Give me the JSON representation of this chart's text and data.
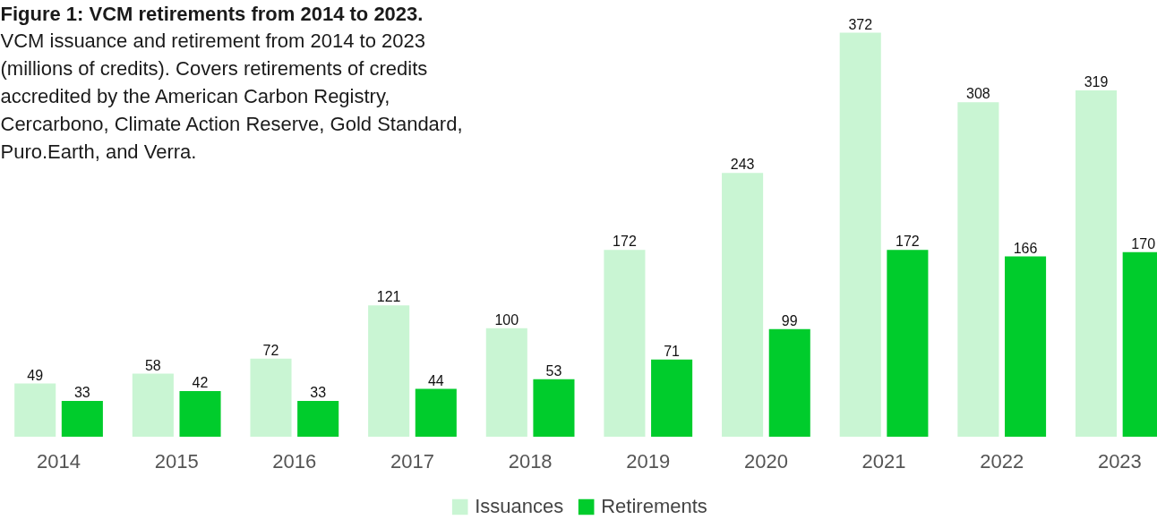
{
  "chart_data": {
    "type": "bar",
    "title": "Figure 1: VCM retirements from 2014 to 2023.",
    "subtitle": "VCM issuance and retirement from 2014 to 2023 (millions of credits). Covers retirements of credits accredited by the American Carbon Registry, Cercarbono, Climate Action Reserve, Gold Standard, Puro.Earth, and Verra.",
    "categories": [
      "2014",
      "2015",
      "2016",
      "2017",
      "2018",
      "2019",
      "2020",
      "2021",
      "2022",
      "2023"
    ],
    "series": [
      {
        "name": "Issuances",
        "color": "#c9f5d3",
        "values": [
          49,
          58,
          72,
          121,
          100,
          172,
          243,
          372,
          308,
          319
        ]
      },
      {
        "name": "Retirements",
        "color": "#00cc2c",
        "values": [
          33,
          42,
          33,
          44,
          53,
          71,
          99,
          172,
          166,
          170
        ]
      }
    ],
    "data_labels": true,
    "grid": false,
    "legend": "bottom",
    "tick_labels": "x"
  }
}
